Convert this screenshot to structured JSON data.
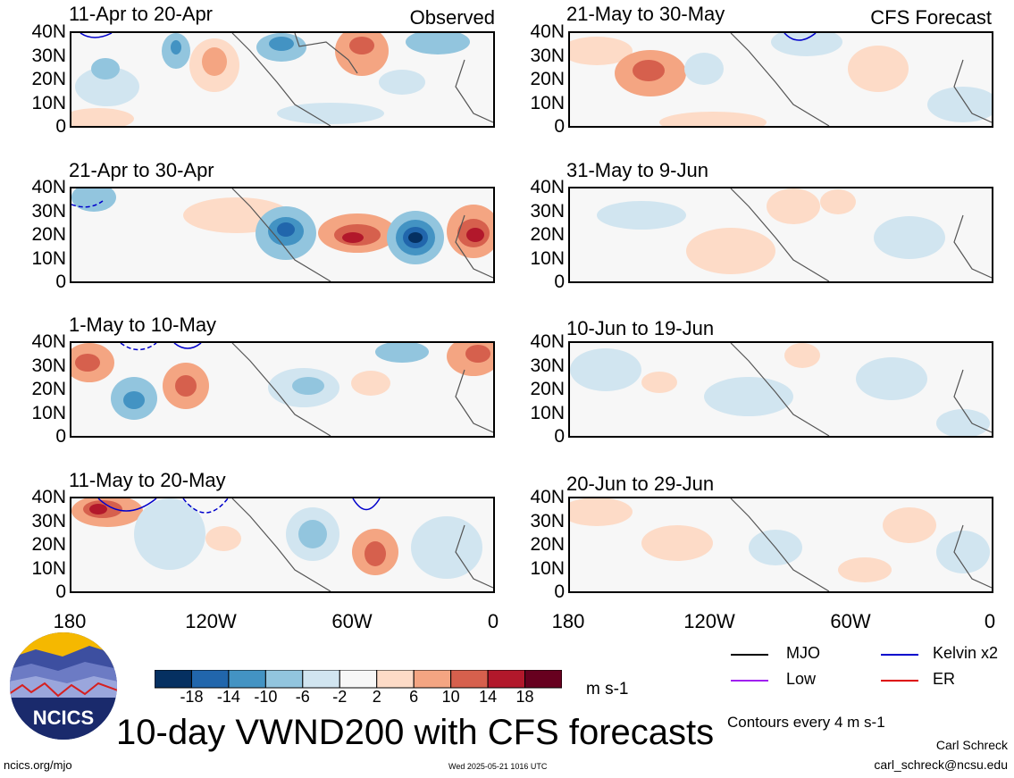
{
  "figure": {
    "title": "10-day VWND200 with CFS forecasts",
    "contour_note": "Contours every 4 m s-1",
    "author": "Carl Schreck",
    "email": "carl_schreck@ncsu.edu",
    "site": "ncics.org/mjo",
    "timestamp": "Wed 2025-05-21 1016 UTC",
    "unit": "m s-1",
    "logo_text": "NCICS"
  },
  "columns": {
    "left_tag": "Observed",
    "right_tag": "CFS Forecast"
  },
  "axes": {
    "lat_ticks": [
      "40N",
      "30N",
      "20N",
      "10N",
      "0"
    ],
    "lon_ticks": [
      "180",
      "120W",
      "60W",
      "0"
    ]
  },
  "panels": {
    "observed": [
      {
        "period": "11-Apr to 20-Apr"
      },
      {
        "period": "21-Apr to 30-Apr"
      },
      {
        "period": "1-May to 10-May"
      },
      {
        "period": "11-May to 20-May"
      }
    ],
    "forecast": [
      {
        "period": "21-May to 30-May"
      },
      {
        "period": "31-May to 9-Jun"
      },
      {
        "period": "10-Jun to 19-Jun"
      },
      {
        "period": "20-Jun to 29-Jun"
      }
    ]
  },
  "colorbar": {
    "labels": [
      "-18",
      "-14",
      "-10",
      "-6",
      "-2",
      "2",
      "6",
      "10",
      "14",
      "18"
    ],
    "colors": [
      "#053061",
      "#2166ac",
      "#4393c3",
      "#92c5de",
      "#d1e5f0",
      "#f7f7f7",
      "#fddbc7",
      "#f4a582",
      "#d6604d",
      "#b2182b",
      "#67001f"
    ]
  },
  "legend": [
    {
      "label": "MJO",
      "color": "#000000"
    },
    {
      "label": "Kelvin x2",
      "color": "#0000cc"
    },
    {
      "label": "Low",
      "color": "#a020f0"
    },
    {
      "label": "ER",
      "color": "#dd0000"
    }
  ]
}
